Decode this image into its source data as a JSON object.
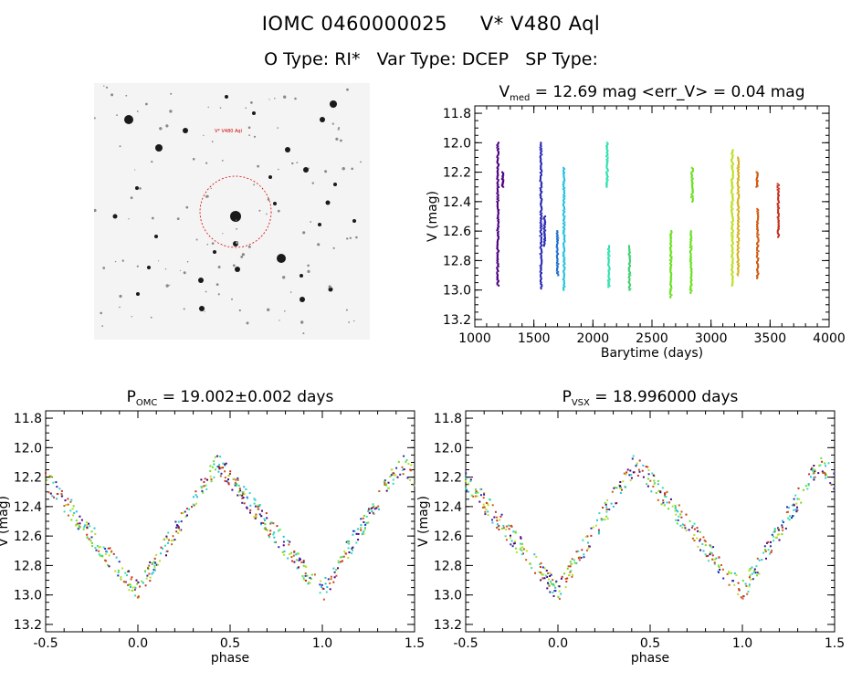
{
  "header": {
    "line1_id": "IOMC 0460000025",
    "line1_name": "V* V480 Aql",
    "line2_otype": "O Type: RI*",
    "line2_vartype": "Var Type: DCEP",
    "line2_sptype": "SP Type:"
  },
  "finder": {
    "target_label": "V* V480 Aql",
    "corner_label": "",
    "bottom_label": ""
  },
  "chart_data": [
    {
      "type": "scatter",
      "title_main": "V",
      "title_sub": "med",
      "title_rest": " = 12.69 mag <err_V> = 0.04 mag",
      "xlabel": "Barytime (days)",
      "ylabel": "V (mag)",
      "xlim": [
        1000,
        4000
      ],
      "ylim": [
        13.25,
        11.75
      ],
      "xticks": [
        "1000",
        "1500",
        "2000",
        "2500",
        "3000",
        "3500",
        "4000"
      ],
      "yticks": [
        "11.8",
        "12.0",
        "12.2",
        "12.4",
        "12.6",
        "12.8",
        "13.0",
        "13.2"
      ],
      "series": [
        {
          "color": "#4b0082",
          "segments": [
            [
              1195,
              12.0,
              12.97
            ],
            [
              1235,
              12.2,
              12.3
            ]
          ]
        },
        {
          "color": "#2a2ab4",
          "segments": [
            [
              1560,
              12.0,
              12.99
            ],
            [
              1590,
              12.5,
              12.7
            ]
          ]
        },
        {
          "color": "#1e6fd0",
          "segments": [
            [
              1700,
              12.6,
              12.9
            ]
          ]
        },
        {
          "color": "#22c4dc",
          "segments": [
            [
              1755,
              12.17,
              13.0
            ]
          ]
        },
        {
          "color": "#30e0b0",
          "segments": [
            [
              2120,
              12.0,
              12.3
            ],
            [
              2135,
              12.7,
              12.98
            ]
          ]
        },
        {
          "color": "#40d070",
          "segments": [
            [
              2310,
              12.7,
              13.0
            ]
          ]
        },
        {
          "color": "#68e020",
          "segments": [
            [
              2660,
              12.6,
              13.05
            ],
            [
              2830,
              12.6,
              13.02
            ],
            [
              2840,
              12.17,
              12.4
            ]
          ]
        },
        {
          "color": "#b8e020",
          "segments": [
            [
              3180,
              12.05,
              12.97
            ]
          ]
        },
        {
          "color": "#d8b020",
          "segments": [
            [
              3230,
              12.1,
              12.9
            ]
          ]
        },
        {
          "color": "#d05a10",
          "segments": [
            [
              3390,
              12.2,
              12.3
            ],
            [
              3395,
              12.45,
              12.92
            ]
          ]
        },
        {
          "color": "#c83020",
          "segments": [
            [
              3570,
              12.28,
              12.64
            ]
          ]
        }
      ]
    },
    {
      "type": "scatter",
      "title_main": "P",
      "title_sub": "OMC",
      "title_rest": " = 19.002±0.002 days",
      "xlabel": "phase",
      "ylabel": "V (mag)",
      "xlim": [
        -0.5,
        1.5
      ],
      "ylim": [
        13.25,
        11.75
      ],
      "xticks": [
        "-0.5",
        "0.0",
        "0.5",
        "1.0",
        "1.5"
      ],
      "yticks": [
        "11.8",
        "12.0",
        "12.2",
        "12.4",
        "12.6",
        "12.8",
        "13.0",
        "13.2"
      ],
      "curve": {
        "max_phase": 0.43,
        "min_phase": 0.0,
        "max_mag": 12.1,
        "min_mag": 12.98
      },
      "colors": [
        "#4b0082",
        "#2a2ab4",
        "#22c4dc",
        "#30e0b0",
        "#68e020",
        "#b8e020",
        "#d05a10",
        "#c83020"
      ]
    },
    {
      "type": "scatter",
      "title_main": "P",
      "title_sub": "VSX",
      "title_rest": " = 18.996000 days",
      "xlabel": "phase",
      "ylabel": "V (mag)",
      "xlim": [
        -0.5,
        1.5
      ],
      "ylim": [
        13.25,
        11.75
      ],
      "xticks": [
        "-0.5",
        "0.0",
        "0.5",
        "1.0",
        "1.5"
      ],
      "yticks": [
        "11.8",
        "12.0",
        "12.2",
        "12.4",
        "12.6",
        "12.8",
        "13.0",
        "13.2"
      ],
      "curve": {
        "max_phase": 0.42,
        "min_phase": 0.0,
        "max_mag": 12.1,
        "min_mag": 12.98
      },
      "colors": [
        "#4b0082",
        "#2a2ab4",
        "#22c4dc",
        "#30e0b0",
        "#68e020",
        "#b8e020",
        "#d05a10",
        "#c83020"
      ]
    }
  ]
}
